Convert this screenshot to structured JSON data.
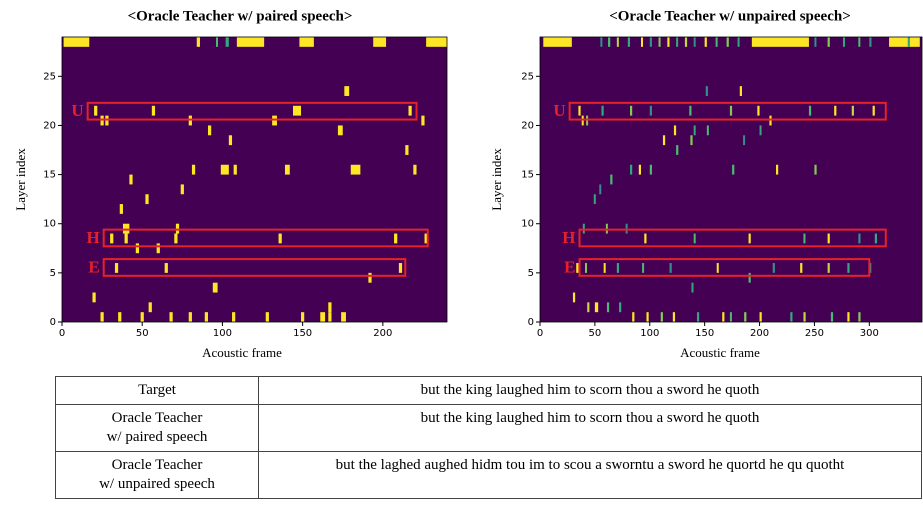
{
  "chart_data": [
    {
      "type": "heatmap",
      "title": "<Oracle Teacher w/ paired speech>",
      "x_label": "Acoustic frame",
      "y_label": "Layer index",
      "xlim": [
        0,
        240
      ],
      "ylim": [
        0,
        29
      ],
      "xticks": [
        0,
        50,
        100,
        150,
        200
      ],
      "yticks": [
        0,
        5,
        10,
        15,
        20,
        25
      ],
      "colormap": [
        "#440154",
        "#31688e",
        "#35b779",
        "#fde725"
      ],
      "cells": {
        "x": [
          1,
          84,
          96,
          102,
          109,
          148,
          194,
          227,
          20,
          56,
          144,
          216,
          24,
          27,
          79,
          131,
          224,
          91,
          172,
          104,
          214,
          176,
          81,
          99,
          107,
          139,
          180,
          219,
          42,
          74,
          52,
          36,
          38,
          71,
          30,
          39,
          70,
          135,
          207,
          226,
          46,
          59,
          33,
          64,
          210,
          191,
          94,
          19,
          54,
          166,
          24,
          35,
          49,
          67,
          79,
          89,
          106,
          127,
          149,
          161,
          166,
          174
        ],
        "y": [
          28,
          28,
          28,
          28,
          28,
          28,
          28,
          28,
          21,
          21,
          21,
          21,
          20,
          20,
          20,
          20,
          20,
          19,
          19,
          18,
          17,
          23,
          15,
          15,
          15,
          15,
          15,
          15,
          14,
          13,
          12,
          11,
          9,
          9,
          8,
          8,
          8,
          8,
          8,
          8,
          7,
          7,
          5,
          5,
          5,
          4,
          3,
          2,
          1,
          1,
          0,
          0,
          0,
          0,
          0,
          0,
          0,
          0,
          0,
          0,
          0,
          0
        ],
        "w": [
          16,
          2,
          1,
          2,
          17,
          9,
          8,
          13,
          2,
          2,
          5,
          2,
          2,
          2,
          2,
          3,
          2,
          2,
          3,
          2,
          2,
          3,
          2,
          5,
          2,
          3,
          6,
          2,
          2,
          2,
          2,
          2,
          4,
          2,
          2,
          2,
          2,
          2,
          2,
          2,
          2,
          2,
          2,
          2,
          2,
          2,
          3,
          2,
          2,
          2,
          2,
          2,
          2,
          2,
          2,
          2,
          2,
          2,
          2,
          3,
          2,
          3
        ],
        "v": [
          1,
          1,
          0.7,
          0.6,
          1,
          1,
          1,
          1,
          1,
          1,
          1,
          1,
          1,
          1,
          1,
          1,
          1,
          1,
          1,
          1,
          1,
          1,
          1,
          1,
          1,
          1,
          1,
          1,
          1,
          1,
          1,
          1,
          1,
          1,
          1,
          1,
          1,
          1,
          1,
          1,
          1,
          1,
          1,
          1,
          1,
          1,
          1,
          1,
          1,
          1,
          1,
          1,
          1,
          1,
          1,
          1,
          1,
          1,
          1,
          1,
          1,
          1
        ]
      },
      "boxes": [
        {
          "label": "U",
          "x": [
            16,
            221
          ],
          "y": [
            20.6,
            22.3
          ]
        },
        {
          "label": "H",
          "x": [
            26,
            228
          ],
          "y": [
            7.7,
            9.4
          ]
        },
        {
          "label": "E",
          "x": [
            26,
            214
          ],
          "y": [
            4.7,
            6.4
          ]
        }
      ],
      "box_color": "#e8202a"
    },
    {
      "type": "heatmap",
      "title": "<Oracle Teacher w/ unpaired speech>",
      "x_label": "Acoustic frame",
      "y_label": "Layer index",
      "xlim": [
        0,
        348
      ],
      "ylim": [
        0,
        29
      ],
      "xticks": [
        0,
        50,
        100,
        150,
        200,
        250,
        300
      ],
      "yticks": [
        0,
        5,
        10,
        15,
        20,
        25
      ],
      "colormap": [
        "#440154",
        "#31688e",
        "#35b779",
        "#fde725"
      ],
      "cells": {
        "x": [
          3,
          55,
          62,
          70,
          80,
          92,
          100,
          108,
          116,
          124,
          132,
          140,
          150,
          160,
          170,
          180,
          193,
          250,
          262,
          276,
          290,
          300,
          318,
          335,
          35,
          56,
          82,
          100,
          136,
          173,
          198,
          245,
          268,
          284,
          303,
          38,
          42,
          209,
          182,
          151,
          152,
          140,
          122,
          200,
          185,
          112,
          137,
          124,
          90,
          175,
          215,
          250,
          100,
          82,
          64,
          49,
          54,
          39,
          60,
          78,
          95,
          140,
          190,
          240,
          262,
          290,
          305,
          33,
          41,
          58,
          70,
          93,
          118,
          161,
          212,
          237,
          262,
          280,
          300,
          190,
          138,
          30,
          43,
          50,
          61,
          72,
          84,
          97,
          110,
          121,
          143,
          166,
          173,
          186,
          200,
          228,
          240,
          265,
          280,
          290
        ],
        "y": [
          28,
          28,
          28,
          28,
          28,
          28,
          28,
          28,
          28,
          28,
          28,
          28,
          28,
          28,
          28,
          28,
          28,
          28,
          28,
          28,
          28,
          28,
          28,
          28,
          21,
          21,
          21,
          21,
          21,
          21,
          21,
          21,
          21,
          21,
          21,
          20,
          20,
          20,
          23,
          23,
          19,
          19,
          19,
          19,
          18,
          18,
          18,
          17,
          15,
          15,
          15,
          15,
          15,
          15,
          14,
          12,
          13,
          9,
          9,
          9,
          8,
          8,
          8,
          8,
          8,
          8,
          8,
          5,
          5,
          5,
          5,
          5,
          5,
          5,
          5,
          5,
          5,
          5,
          5,
          4,
          3,
          2,
          1,
          1,
          1,
          1,
          0,
          0,
          0,
          0,
          0,
          0,
          0,
          0,
          0,
          0,
          0,
          0,
          0,
          0
        ],
        "w": [
          26,
          1,
          2,
          1,
          2,
          1,
          2,
          1,
          2,
          1,
          2,
          1,
          2,
          1,
          2,
          1,
          52,
          1,
          2,
          1,
          1,
          2,
          28,
          2,
          2,
          2,
          2,
          2,
          2,
          2,
          2,
          2,
          2,
          2,
          2,
          1,
          1,
          2,
          2,
          2,
          1,
          1,
          2,
          1,
          1,
          2,
          2,
          2,
          2,
          2,
          2,
          2,
          2,
          2,
          2,
          1,
          1,
          1,
          1,
          1,
          2,
          1,
          2,
          1,
          2,
          2,
          2,
          2,
          1,
          1,
          2,
          1,
          2,
          1,
          2,
          2,
          2,
          2,
          1,
          2,
          1,
          2,
          2,
          3,
          2,
          2,
          2,
          2,
          2,
          2,
          2,
          2,
          1,
          2,
          2,
          2,
          2,
          2,
          2,
          2
        ],
        "v": [
          1,
          0.5,
          0.7,
          0.9,
          0.6,
          1,
          0.5,
          0.8,
          1,
          0.6,
          0.9,
          0.5,
          1,
          0.7,
          0.8,
          0.6,
          1,
          0.5,
          0.8,
          0.6,
          0.7,
          0.5,
          1,
          0.6,
          1,
          0.6,
          0.8,
          0.5,
          0.7,
          0.8,
          1,
          0.7,
          1,
          0.9,
          1,
          1,
          0.8,
          1,
          1,
          0.5,
          0.7,
          0.6,
          1,
          0.6,
          0.5,
          1,
          0.8,
          0.7,
          1,
          0.7,
          1,
          0.8,
          0.7,
          0.6,
          0.7,
          0.6,
          0.5,
          0.6,
          0.8,
          0.5,
          1,
          0.7,
          1,
          0.7,
          1,
          0.5,
          0.6,
          1,
          0.8,
          1,
          0.6,
          0.7,
          0.5,
          1,
          0.5,
          1,
          0.9,
          0.6,
          0.5,
          0.7,
          0.6,
          1,
          0.9,
          1,
          0.7,
          0.6,
          1,
          1,
          0.8,
          1,
          0.6,
          1,
          0.7,
          0.8,
          1,
          0.6,
          0.9,
          0.7,
          1,
          0.8
        ]
      },
      "boxes": [
        {
          "label": "U",
          "x": [
            27,
            315
          ],
          "y": [
            20.6,
            22.3
          ]
        },
        {
          "label": "H",
          "x": [
            36,
            315
          ],
          "y": [
            7.7,
            9.4
          ]
        },
        {
          "label": "E",
          "x": [
            36,
            300
          ],
          "y": [
            4.7,
            6.4
          ]
        }
      ],
      "box_color": "#e8202a"
    }
  ],
  "table": {
    "rows": [
      {
        "label": [
          "Target"
        ],
        "text": "but the king laughed him to scorn thou a sword he quoth"
      },
      {
        "label": [
          "Oracle Teacher",
          "w/ paired speech"
        ],
        "text": "but the king laughed him to scorn thou a sword he quoth"
      },
      {
        "label": [
          "Oracle Teacher",
          "w/ unpaired speech"
        ],
        "text": "but the laghed aughed hidm tou im to scou a sworntu a sword he quortd he qu quotht"
      }
    ]
  }
}
